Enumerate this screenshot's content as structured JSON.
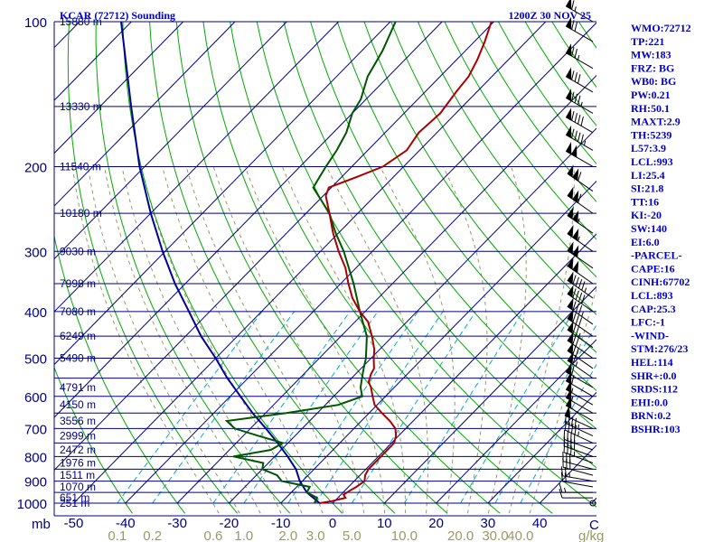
{
  "title": "KCAR (72712) Sounding",
  "datetime": "1200Z 30 NOV 25",
  "colors": {
    "isobar": "#000080",
    "isotherm": "#000080",
    "dry_adiabat": "#00aa00",
    "moist_adiabat": "#999966",
    "mixing_ratio": "#00aacc",
    "temperature": "#aa0000",
    "dewpoint": "#005500",
    "parcel": "#000099",
    "text": "#0000cc"
  },
  "stations_indices": [
    "WMO:72712",
    "TP:221",
    "MW:183",
    "FRZ: BG",
    "WB0: BG",
    "PW:0.21",
    "RH:50.1",
    "MAXT:2.9",
    "TH:5239",
    "L57:3.9",
    "LCL:993",
    "LI:25.4",
    "SI:21.8",
    "TT:16",
    "KI:-20",
    "SW:140",
    "EI:6.0",
    "-PARCEL-",
    "CAPE:16",
    "CINH:67702",
    "LCL:893",
    "CAP:25.3",
    "LFC:-1",
    "-WIND-",
    "STM:276/23",
    "HEL:114",
    "SHR+:0.0",
    "SRDS:112",
    "EHI:0.0",
    "BRN:0.2",
    "BSHR:103"
  ],
  "chart_data": {
    "type": "skew-t",
    "title": "KCAR (72712) Sounding",
    "ylabel": "mb",
    "xlabel_units": "C",
    "mixing_ratio_units": "g/kg",
    "log_pressure": true,
    "pressure_range": [
      1000,
      100
    ],
    "pressure_ticks": [
      100,
      200,
      300,
      400,
      500,
      600,
      700,
      800,
      900,
      1000
    ],
    "pressure_tick_labels": [
      "100",
      "200",
      "300",
      "400",
      "500",
      "600",
      "700",
      "800",
      "900",
      "1000"
    ],
    "temperature_ticks": [
      -50,
      -40,
      -30,
      -20,
      -10,
      0,
      10,
      20,
      30,
      40
    ],
    "temperature_tick_labels": [
      "-50",
      "-40",
      "-30",
      "-20",
      "-10",
      "0",
      "10",
      "20",
      "30",
      "40"
    ],
    "mixing_ratio_ticks": [
      0.1,
      0.2,
      0.6,
      1.0,
      2.0,
      3.0,
      5.0,
      10.0,
      20.0,
      30.0,
      40.0
    ],
    "mixing_ratio_tick_labels": [
      "0.1",
      "0.2",
      "0.6",
      "1.0",
      "2.0",
      "3.0",
      "5.0",
      "10.0",
      "20.0",
      "30.0",
      "40.0"
    ],
    "heights": [
      {
        "p": 1000,
        "label": "251 m"
      },
      {
        "p": 975,
        "label": "651 m"
      },
      {
        "p": 925,
        "label": "1070 m"
      },
      {
        "p": 875,
        "label": "1511 m"
      },
      {
        "p": 825,
        "label": "1976 m"
      },
      {
        "p": 775,
        "label": "2472 m"
      },
      {
        "p": 725,
        "label": "2999 m"
      },
      {
        "p": 675,
        "label": "3556 m"
      },
      {
        "p": 625,
        "label": "4150 m"
      },
      {
        "p": 575,
        "label": "4791 m"
      },
      {
        "p": 500,
        "label": "5490 m"
      },
      {
        "p": 450,
        "label": "6249 m"
      },
      {
        "p": 400,
        "label": "7080 m"
      },
      {
        "p": 350,
        "label": "7998 m"
      },
      {
        "p": 300,
        "label": "9030 m"
      },
      {
        "p": 250,
        "label": "10180 m"
      },
      {
        "p": 200,
        "label": "11540 m"
      },
      {
        "p": 150,
        "label": "13330 m"
      },
      {
        "p": 100,
        "label": "15880 m"
      }
    ],
    "temperature_profile": [
      {
        "p": 1000,
        "t": -2.5
      },
      {
        "p": 990,
        "t": -0.5
      },
      {
        "p": 975,
        "t": 1.5
      },
      {
        "p": 960,
        "t": 0.5
      },
      {
        "p": 940,
        "t": 1.0
      },
      {
        "p": 925,
        "t": 1.5
      },
      {
        "p": 900,
        "t": 2.0
      },
      {
        "p": 875,
        "t": 1.0
      },
      {
        "p": 850,
        "t": 0.5
      },
      {
        "p": 825,
        "t": 0.5
      },
      {
        "p": 800,
        "t": 0.5
      },
      {
        "p": 775,
        "t": 0.5
      },
      {
        "p": 750,
        "t": 0.5
      },
      {
        "p": 725,
        "t": -0.5
      },
      {
        "p": 700,
        "t": -2.0
      },
      {
        "p": 675,
        "t": -4.5
      },
      {
        "p": 650,
        "t": -7.5
      },
      {
        "p": 625,
        "t": -10.5
      },
      {
        "p": 600,
        "t": -12.5
      },
      {
        "p": 575,
        "t": -14.5
      },
      {
        "p": 560,
        "t": -16.0
      },
      {
        "p": 540,
        "t": -17.0
      },
      {
        "p": 525,
        "t": -17.5
      },
      {
        "p": 500,
        "t": -19.5
      },
      {
        "p": 480,
        "t": -21.0
      },
      {
        "p": 450,
        "t": -24.0
      },
      {
        "p": 420,
        "t": -27.5
      },
      {
        "p": 400,
        "t": -31.0
      },
      {
        "p": 375,
        "t": -35.0
      },
      {
        "p": 350,
        "t": -38.5
      },
      {
        "p": 325,
        "t": -42.0
      },
      {
        "p": 300,
        "t": -46.5
      },
      {
        "p": 275,
        "t": -51.0
      },
      {
        "p": 250,
        "t": -55.5
      },
      {
        "p": 230,
        "t": -59.5
      },
      {
        "p": 221,
        "t": -60.5
      },
      {
        "p": 210,
        "t": -57.0
      },
      {
        "p": 200,
        "t": -54.0
      },
      {
        "p": 185,
        "t": -52.5
      },
      {
        "p": 170,
        "t": -53.5
      },
      {
        "p": 155,
        "t": -53.0
      },
      {
        "p": 140,
        "t": -54.0
      },
      {
        "p": 130,
        "t": -54.5
      },
      {
        "p": 120,
        "t": -56.0
      },
      {
        "p": 110,
        "t": -58.0
      },
      {
        "p": 100,
        "t": -60.5
      }
    ],
    "dewpoint_profile": [
      {
        "p": 1000,
        "td": -3.5
      },
      {
        "p": 975,
        "td": -4.0
      },
      {
        "p": 950,
        "td": -7.0
      },
      {
        "p": 925,
        "td": -7.5
      },
      {
        "p": 900,
        "td": -14.0
      },
      {
        "p": 875,
        "td": -16.0
      },
      {
        "p": 850,
        "td": -20.0
      },
      {
        "p": 825,
        "td": -21.0
      },
      {
        "p": 800,
        "td": -28.0
      },
      {
        "p": 775,
        "td": -22.0
      },
      {
        "p": 750,
        "td": -21.0
      },
      {
        "p": 725,
        "td": -27.0
      },
      {
        "p": 700,
        "td": -33.0
      },
      {
        "p": 675,
        "td": -36.0
      },
      {
        "p": 650,
        "td": -26.0
      },
      {
        "p": 625,
        "td": -17.5
      },
      {
        "p": 600,
        "td": -14.5
      },
      {
        "p": 575,
        "td": -16.5
      },
      {
        "p": 550,
        "td": -18.0
      },
      {
        "p": 525,
        "td": -19.5
      },
      {
        "p": 500,
        "td": -21.0
      },
      {
        "p": 450,
        "td": -25.0
      },
      {
        "p": 400,
        "td": -31.0
      },
      {
        "p": 350,
        "td": -37.5
      },
      {
        "p": 300,
        "td": -45.5
      },
      {
        "p": 275,
        "td": -50.5
      },
      {
        "p": 250,
        "td": -55.5
      },
      {
        "p": 221,
        "td": -63.5
      },
      {
        "p": 200,
        "td": -65.0
      },
      {
        "p": 185,
        "td": -66.0
      },
      {
        "p": 170,
        "td": -67.5
      },
      {
        "p": 155,
        "td": -70.0
      },
      {
        "p": 145,
        "td": -71.0
      },
      {
        "p": 130,
        "td": -74.0
      },
      {
        "p": 115,
        "td": -76.0
      },
      {
        "p": 100,
        "td": -79.0
      }
    ],
    "parcel_profile": [
      {
        "p": 1000,
        "t": -2.5
      },
      {
        "p": 950,
        "t": -7.0
      },
      {
        "p": 900,
        "t": -10.5
      },
      {
        "p": 850,
        "t": -13.5
      },
      {
        "p": 800,
        "t": -17.5
      },
      {
        "p": 750,
        "t": -22.0
      },
      {
        "p": 700,
        "t": -27.0
      },
      {
        "p": 650,
        "t": -32.5
      },
      {
        "p": 600,
        "t": -38.0
      },
      {
        "p": 550,
        "t": -44.0
      },
      {
        "p": 500,
        "t": -50.0
      },
      {
        "p": 450,
        "t": -57.0
      },
      {
        "p": 400,
        "t": -64.0
      },
      {
        "p": 350,
        "t": -72.0
      },
      {
        "p": 300,
        "t": -80.5
      },
      {
        "p": 250,
        "t": -90.0
      },
      {
        "p": 200,
        "t": -101.0
      },
      {
        "p": 150,
        "t": -114.0
      },
      {
        "p": 100,
        "t": -132.0
      }
    ],
    "wind_barbs": [
      {
        "p": 1000,
        "dir": 180,
        "spd": 0
      },
      {
        "p": 975,
        "dir": 270,
        "spd": 10
      },
      {
        "p": 950,
        "dir": 270,
        "spd": 15
      },
      {
        "p": 925,
        "dir": 280,
        "spd": 20
      },
      {
        "p": 900,
        "dir": 280,
        "spd": 25
      },
      {
        "p": 875,
        "dir": 285,
        "spd": 30
      },
      {
        "p": 850,
        "dir": 285,
        "spd": 30
      },
      {
        "p": 825,
        "dir": 290,
        "spd": 35
      },
      {
        "p": 800,
        "dir": 290,
        "spd": 40
      },
      {
        "p": 775,
        "dir": 290,
        "spd": 40
      },
      {
        "p": 750,
        "dir": 295,
        "spd": 45
      },
      {
        "p": 725,
        "dir": 295,
        "spd": 45
      },
      {
        "p": 700,
        "dir": 295,
        "spd": 50
      },
      {
        "p": 675,
        "dir": 300,
        "spd": 50
      },
      {
        "p": 650,
        "dir": 300,
        "spd": 55
      },
      {
        "p": 625,
        "dir": 300,
        "spd": 55
      },
      {
        "p": 600,
        "dir": 300,
        "spd": 60
      },
      {
        "p": 575,
        "dir": 300,
        "spd": 60
      },
      {
        "p": 550,
        "dir": 305,
        "spd": 65
      },
      {
        "p": 525,
        "dir": 305,
        "spd": 70
      },
      {
        "p": 500,
        "dir": 305,
        "spd": 70
      },
      {
        "p": 475,
        "dir": 305,
        "spd": 75
      },
      {
        "p": 450,
        "dir": 305,
        "spd": 80
      },
      {
        "p": 425,
        "dir": 305,
        "spd": 85
      },
      {
        "p": 400,
        "dir": 305,
        "spd": 90
      },
      {
        "p": 375,
        "dir": 305,
        "spd": 95
      },
      {
        "p": 350,
        "dir": 305,
        "spd": 100
      },
      {
        "p": 325,
        "dir": 305,
        "spd": 100
      },
      {
        "p": 300,
        "dir": 305,
        "spd": 105
      },
      {
        "p": 275,
        "dir": 305,
        "spd": 105
      },
      {
        "p": 250,
        "dir": 305,
        "spd": 110
      },
      {
        "p": 225,
        "dir": 305,
        "spd": 110
      },
      {
        "p": 200,
        "dir": 300,
        "spd": 100
      },
      {
        "p": 185,
        "dir": 300,
        "spd": 95
      },
      {
        "p": 170,
        "dir": 300,
        "spd": 90
      },
      {
        "p": 155,
        "dir": 300,
        "spd": 85
      },
      {
        "p": 140,
        "dir": 300,
        "spd": 80
      },
      {
        "p": 125,
        "dir": 300,
        "spd": 75
      },
      {
        "p": 110,
        "dir": 300,
        "spd": 70
      },
      {
        "p": 100,
        "dir": 300,
        "spd": 65
      }
    ]
  }
}
